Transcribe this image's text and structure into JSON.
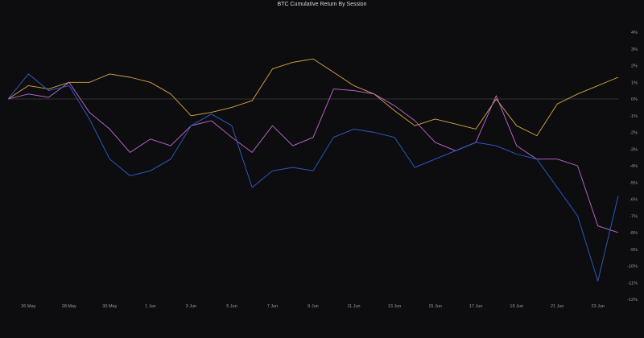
{
  "chart_data": {
    "type": "line",
    "title": "BTC Cumulative Return By Session",
    "xlabel": "",
    "ylabel": "",
    "x_ticks": [
      "26 May",
      "28 May",
      "30 May",
      "1 Jun",
      "3 Jun",
      "5 Jun",
      "7 Jun",
      "9 Jun",
      "11 Jun",
      "13 Jun",
      "15 Jun",
      "17 Jun",
      "19 Jun",
      "21 Jun",
      "23 Jun"
    ],
    "x_range": [
      "2024-05-25",
      "2024-06-24"
    ],
    "ylim": [
      -12,
      4
    ],
    "y_ticks": [
      4,
      3,
      2,
      1,
      0,
      -1,
      -2,
      -3,
      -4,
      -5,
      -6,
      -7,
      -8,
      -9,
      -10,
      -11,
      -12
    ],
    "y_tick_labels": [
      "4%",
      "3%",
      "2%",
      "1%",
      "0%",
      "-1%",
      "-2%",
      "-3%",
      "-4%",
      "-5%",
      "-6%",
      "-7%",
      "-8%",
      "-9%",
      "-10%",
      "-11%",
      "-12%"
    ],
    "zero_line": true,
    "grid": false,
    "legend_position": "bottom",
    "series": [
      {
        "color": "#d9a441",
        "x": [
          "2024-05-25",
          "2024-05-26",
          "2024-05-27",
          "2024-05-28",
          "2024-05-29",
          "2024-05-30",
          "2024-05-31",
          "2024-06-01",
          "2024-06-02",
          "2024-06-03",
          "2024-06-04",
          "2024-06-05",
          "2024-06-06",
          "2024-06-07",
          "2024-06-08",
          "2024-06-09",
          "2024-06-10",
          "2024-06-11",
          "2024-06-12",
          "2024-06-13",
          "2024-06-14",
          "2024-06-15",
          "2024-06-16",
          "2024-06-17",
          "2024-06-18",
          "2024-06-19",
          "2024-06-20",
          "2024-06-21",
          "2024-06-22",
          "2024-06-23",
          "2024-06-24"
        ],
        "values": [
          0,
          0.8,
          0.6,
          1.0,
          1.0,
          1.5,
          1.3,
          1.0,
          0.3,
          -1.0,
          -0.8,
          -0.5,
          -0.1,
          1.8,
          2.2,
          2.4,
          1.6,
          0.8,
          0.3,
          -0.7,
          -1.6,
          -1.2,
          -1.5,
          -1.8,
          0.0,
          -1.6,
          -2.2,
          -0.3,
          0.3,
          0.8,
          1.3
        ]
      },
      {
        "color": "#c069d4",
        "x": [
          "2024-05-25",
          "2024-05-26",
          "2024-05-27",
          "2024-05-28",
          "2024-05-29",
          "2024-05-30",
          "2024-05-31",
          "2024-06-01",
          "2024-06-02",
          "2024-06-03",
          "2024-06-04",
          "2024-06-05",
          "2024-06-06",
          "2024-06-07",
          "2024-06-08",
          "2024-06-09",
          "2024-06-10",
          "2024-06-11",
          "2024-06-12",
          "2024-06-13",
          "2024-06-14",
          "2024-06-15",
          "2024-06-16",
          "2024-06-17",
          "2024-06-18",
          "2024-06-19",
          "2024-06-20",
          "2024-06-21",
          "2024-06-22",
          "2024-06-23",
          "2024-06-24"
        ],
        "values": [
          0,
          0.3,
          0.1,
          1.0,
          -0.8,
          -1.8,
          -3.2,
          -2.4,
          -2.8,
          -1.6,
          -1.3,
          -2.3,
          -3.2,
          -1.6,
          -2.8,
          -2.3,
          0.6,
          0.5,
          0.3,
          -0.4,
          -1.3,
          -2.6,
          -3.1,
          -2.6,
          0.2,
          -2.8,
          -3.6,
          -3.6,
          -4.0,
          -7.6,
          -8.0
        ]
      },
      {
        "color": "#2e5fd0",
        "x": [
          "2024-05-25",
          "2024-05-26",
          "2024-05-27",
          "2024-05-28",
          "2024-05-29",
          "2024-05-30",
          "2024-05-31",
          "2024-06-01",
          "2024-06-02",
          "2024-06-03",
          "2024-06-04",
          "2024-06-05",
          "2024-06-06",
          "2024-06-07",
          "2024-06-08",
          "2024-06-09",
          "2024-06-10",
          "2024-06-11",
          "2024-06-12",
          "2024-06-13",
          "2024-06-14",
          "2024-06-15",
          "2024-06-16",
          "2024-06-17",
          "2024-06-18",
          "2024-06-19",
          "2024-06-20",
          "2024-06-21",
          "2024-06-22",
          "2024-06-23",
          "2024-06-24"
        ],
        "values": [
          0,
          1.5,
          0.5,
          0.8,
          -1.2,
          -3.6,
          -4.6,
          -4.3,
          -3.6,
          -1.6,
          -0.9,
          -1.6,
          -5.3,
          -4.3,
          -4.1,
          -4.3,
          -2.3,
          -1.8,
          -2.0,
          -2.3,
          -4.1,
          -3.6,
          -3.1,
          -2.6,
          -2.8,
          -3.3,
          -3.6,
          -5.3,
          -7.0,
          -10.9,
          -5.8
        ]
      }
    ]
  }
}
